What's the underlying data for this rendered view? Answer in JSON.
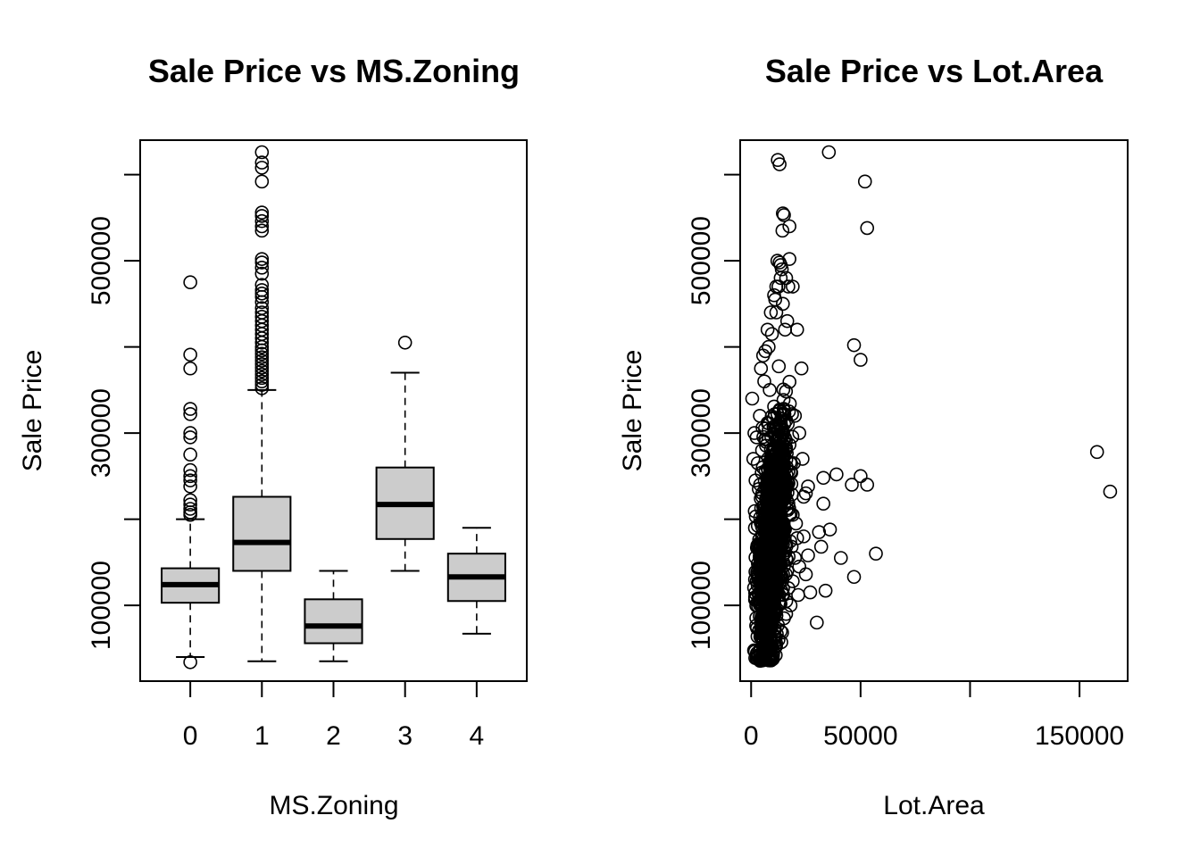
{
  "chart_data": [
    {
      "type": "box",
      "title": "Sale Price vs MS.Zoning",
      "xlabel": "MS.Zoning",
      "ylabel": "Sale Price",
      "x_tick_labels": [
        "0",
        "1",
        "2",
        "3",
        "4"
      ],
      "y_tick_labels": [
        "100000",
        "300000",
        "500000"
      ],
      "y_ticks": [
        100000,
        200000,
        300000,
        400000,
        500000,
        600000
      ],
      "ylim": [
        12000,
        640000
      ],
      "xlim": [
        -0.7,
        4.7
      ],
      "boxes": [
        {
          "category": "0",
          "lower_whisker": 40000,
          "q1": 103000,
          "median": 124000,
          "q3": 143000,
          "upper_whisker": 200000,
          "outliers": [
            34000,
            475000,
            391000,
            375000,
            328000,
            322000,
            300000,
            295000,
            275000,
            257000,
            250000,
            245000,
            238000,
            222000,
            217000,
            212000,
            208000,
            205000
          ]
        },
        {
          "category": "1",
          "lower_whisker": 35000,
          "q1": 140000,
          "median": 173000,
          "q3": 226000,
          "upper_whisker": 350000,
          "outliers": [
            626000,
            614000,
            608000,
            592000,
            556000,
            552000,
            546000,
            540000,
            535000,
            502000,
            498000,
            492000,
            485000,
            472000,
            466000,
            462000,
            458000,
            452000,
            445000,
            440000,
            435000,
            430000,
            425000,
            420000,
            415000,
            410000,
            405000,
            400000,
            396000,
            392000,
            388000,
            384000,
            380000,
            376000,
            372000,
            368000,
            364000,
            360000,
            356000,
            352000
          ]
        },
        {
          "category": "2",
          "lower_whisker": 35000,
          "q1": 56000,
          "median": 76000,
          "q3": 107000,
          "upper_whisker": 140000,
          "outliers": []
        },
        {
          "category": "3",
          "lower_whisker": 140000,
          "q1": 177000,
          "median": 217000,
          "q3": 260000,
          "upper_whisker": 370000,
          "outliers": [
            405000
          ]
        },
        {
          "category": "4",
          "lower_whisker": 67000,
          "q1": 105000,
          "median": 133000,
          "q3": 160000,
          "upper_whisker": 190000,
          "outliers": []
        }
      ]
    },
    {
      "type": "scatter",
      "title": "Sale Price vs Lot.Area",
      "xlabel": "Lot.Area",
      "ylabel": "Sale Price",
      "x_tick_labels": [
        "0",
        "50000",
        "150000"
      ],
      "x_ticks": [
        0,
        50000,
        100000,
        150000
      ],
      "y_tick_labels": [
        "100000",
        "300000",
        "500000"
      ],
      "y_ticks": [
        100000,
        200000,
        300000,
        400000,
        500000,
        600000
      ],
      "xlim": [
        -5000,
        172000
      ],
      "ylim": [
        12000,
        640000
      ],
      "points_outlying": [
        [
          35500,
          626000
        ],
        [
          12200,
          617000
        ],
        [
          13000,
          612000
        ],
        [
          52000,
          592000
        ],
        [
          53000,
          538000
        ],
        [
          14500,
          555000
        ],
        [
          15000,
          553000
        ],
        [
          17500,
          540000
        ],
        [
          14300,
          535000
        ],
        [
          23000,
          375000
        ],
        [
          13000,
          498000
        ],
        [
          17500,
          502000
        ],
        [
          14000,
          490000
        ],
        [
          11500,
          470000
        ],
        [
          19000,
          470000
        ],
        [
          47000,
          402000
        ],
        [
          50000,
          385000
        ],
        [
          39000,
          252000
        ],
        [
          46000,
          240000
        ],
        [
          50000,
          250000
        ],
        [
          53000,
          240000
        ],
        [
          33000,
          248000
        ],
        [
          26000,
          238000
        ],
        [
          24000,
          226000
        ],
        [
          33000,
          218000
        ],
        [
          36000,
          188000
        ],
        [
          31000,
          185000
        ],
        [
          57000,
          160000
        ],
        [
          41000,
          155000
        ],
        [
          47000,
          133000
        ],
        [
          32000,
          168000
        ],
        [
          26000,
          158000
        ],
        [
          34000,
          117000
        ],
        [
          27000,
          115000
        ],
        [
          30000,
          80000
        ],
        [
          20000,
          155000
        ],
        [
          22000,
          145000
        ],
        [
          25000,
          136000
        ],
        [
          19000,
          128000
        ],
        [
          21000,
          178000
        ],
        [
          158000,
          278000
        ],
        [
          164000,
          232000
        ],
        [
          21000,
          420000
        ],
        [
          20000,
          320000
        ],
        [
          22000,
          300000
        ],
        [
          19500,
          265000
        ],
        [
          18000,
          255000
        ],
        [
          23500,
          270000
        ],
        [
          25000,
          230000
        ],
        [
          17500,
          205000
        ],
        [
          20500,
          195000
        ],
        [
          24000,
          180000
        ],
        [
          18500,
          168000
        ],
        [
          16500,
          140000
        ],
        [
          17000,
          120000
        ],
        [
          18000,
          100000
        ],
        [
          15000,
          85000
        ],
        [
          16000,
          90000
        ],
        [
          19000,
          205000
        ],
        [
          21500,
          112000
        ],
        [
          500,
          340000
        ],
        [
          1500,
          300000
        ],
        [
          2500,
          295000
        ],
        [
          1000,
          270000
        ],
        [
          3000,
          265000
        ],
        [
          2000,
          245000
        ],
        [
          3500,
          235000
        ],
        [
          4500,
          375000
        ],
        [
          5500,
          390000
        ],
        [
          6500,
          395000
        ],
        [
          7500,
          420000
        ],
        [
          8500,
          350000
        ],
        [
          9500,
          415000
        ],
        [
          10500,
          460000
        ],
        [
          11500,
          440000
        ],
        [
          12500,
          470000
        ],
        [
          13500,
          480000
        ],
        [
          14500,
          450000
        ],
        [
          15500,
          420000
        ],
        [
          16500,
          430000
        ],
        [
          12000,
          500000
        ],
        [
          13500,
          495000
        ],
        [
          16000,
          480000
        ],
        [
          17000,
          470000
        ],
        [
          11000,
          455000
        ],
        [
          9000,
          440000
        ],
        [
          8000,
          400000
        ],
        [
          6000,
          360000
        ],
        [
          4000,
          320000
        ],
        [
          5000,
          280000
        ],
        [
          7000,
          45000
        ],
        [
          8000,
          38000
        ],
        [
          9000,
          36000
        ],
        [
          10000,
          42000
        ],
        [
          11000,
          52000
        ],
        [
          6000,
          50000
        ],
        [
          5000,
          60000
        ],
        [
          12500,
          60000
        ],
        [
          13500,
          70000
        ],
        [
          7500,
          55000
        ]
      ]
    }
  ]
}
